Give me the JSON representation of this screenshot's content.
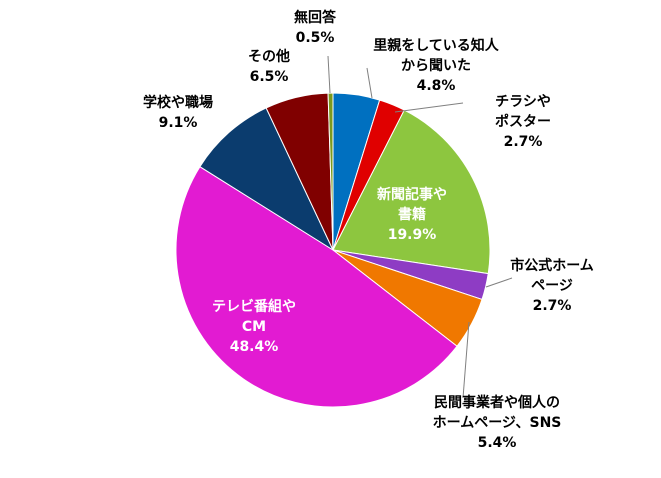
{
  "chart_data": {
    "type": "pie",
    "title": "",
    "start_angle_deg": 0,
    "direction": "clockwise",
    "slices": [
      {
        "label": [
          "里親をしている知人",
          "から聞いた"
        ],
        "value": 4.8,
        "value_label": "4.8%",
        "color": "#0070C0"
      },
      {
        "label": [
          "チラシや",
          "ポスター"
        ],
        "value": 2.7,
        "value_label": "2.7%",
        "color": "#E00000"
      },
      {
        "label": [
          "新聞記事や",
          "書籍"
        ],
        "value": 19.9,
        "value_label": "19.9%",
        "color": "#8DC63F"
      },
      {
        "label": [
          "市公式ホーム",
          "ページ"
        ],
        "value": 2.7,
        "value_label": "2.7%",
        "color": "#8E3CC4"
      },
      {
        "label": [
          "民間事業者や個人の",
          "ホームページ、SNS"
        ],
        "value": 5.4,
        "value_label": "5.4%",
        "color": "#F07800"
      },
      {
        "label": [
          "テレビ番組や",
          "CM"
        ],
        "value": 48.4,
        "value_label": "48.4%",
        "color": "#E21BD2"
      },
      {
        "label": [
          "学校や職場"
        ],
        "value": 9.1,
        "value_label": "9.1%",
        "color": "#0B3C6E"
      },
      {
        "label": [
          "その他"
        ],
        "value": 6.5,
        "value_label": "6.5%",
        "color": "#800000"
      },
      {
        "label": [
          "無回答"
        ],
        "value": 0.5,
        "value_label": "0.5%",
        "color": "#7A9A1E"
      }
    ]
  }
}
